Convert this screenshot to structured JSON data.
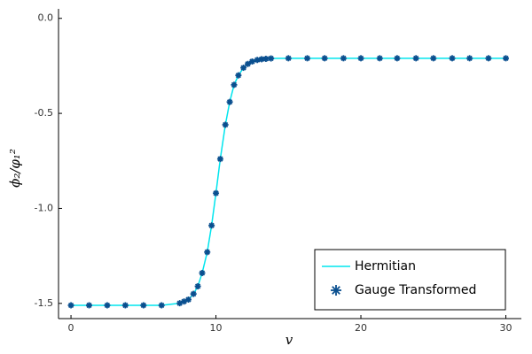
{
  "chart_data": {
    "type": "line-scatter",
    "x_label": "v",
    "y_label": "ϕ₂/φ₁²",
    "x": [
      0,
      1.25,
      2.5,
      3.75,
      5,
      6.25,
      7.5,
      7.8,
      8.1,
      8.45,
      8.75,
      9.05,
      9.4,
      9.7,
      10.0,
      10.3,
      10.65,
      10.95,
      11.25,
      11.55,
      11.9,
      12.2,
      12.5,
      12.85,
      13.15,
      13.45,
      13.8,
      15,
      16.3,
      17.5,
      18.8,
      20,
      21.3,
      22.5,
      23.8,
      25,
      26.3,
      27.5,
      28.8,
      30
    ],
    "series": [
      {
        "name": "Hermitian",
        "color": "#00e5ee",
        "mode": "line",
        "values": [
          -1.51,
          -1.51,
          -1.51,
          -1.51,
          -1.51,
          -1.51,
          -1.499,
          -1.49,
          -1.48,
          -1.45,
          -1.41,
          -1.34,
          -1.23,
          -1.09,
          -0.92,
          -0.74,
          -0.56,
          -0.44,
          -0.35,
          -0.3,
          -0.26,
          -0.24,
          -0.227,
          -0.219,
          -0.215,
          -0.213,
          -0.211,
          -0.21,
          -0.21,
          -0.21,
          -0.21,
          -0.21,
          -0.21,
          -0.21,
          -0.21,
          -0.21,
          -0.21,
          -0.21,
          -0.21,
          -0.21
        ]
      },
      {
        "name": "Gauge Transformed",
        "color": "#0a4f8f",
        "mode": "markers",
        "values": [
          -1.51,
          -1.51,
          -1.51,
          -1.51,
          -1.51,
          -1.51,
          -1.499,
          -1.49,
          -1.48,
          -1.45,
          -1.41,
          -1.34,
          -1.23,
          -1.09,
          -0.92,
          -0.74,
          -0.56,
          -0.44,
          -0.35,
          -0.3,
          -0.26,
          -0.24,
          -0.227,
          -0.219,
          -0.215,
          -0.213,
          -0.211,
          -0.21,
          -0.21,
          -0.21,
          -0.21,
          -0.21,
          -0.21,
          -0.21,
          -0.21,
          -0.21,
          -0.21,
          -0.21,
          -0.21,
          -0.21
        ]
      }
    ],
    "xlim": [
      -0.86,
      31.07
    ],
    "ylim": [
      -1.58,
      0.05
    ],
    "xticks": [
      0,
      10,
      20,
      30
    ],
    "yticks": [
      {
        "value": 0,
        "label": "0.0"
      },
      -0.5,
      {
        "value": -1,
        "label": "-1.0"
      },
      {
        "value": -1.5,
        "label": "-1.5"
      }
    ],
    "grid": false,
    "legend": "lower right"
  }
}
